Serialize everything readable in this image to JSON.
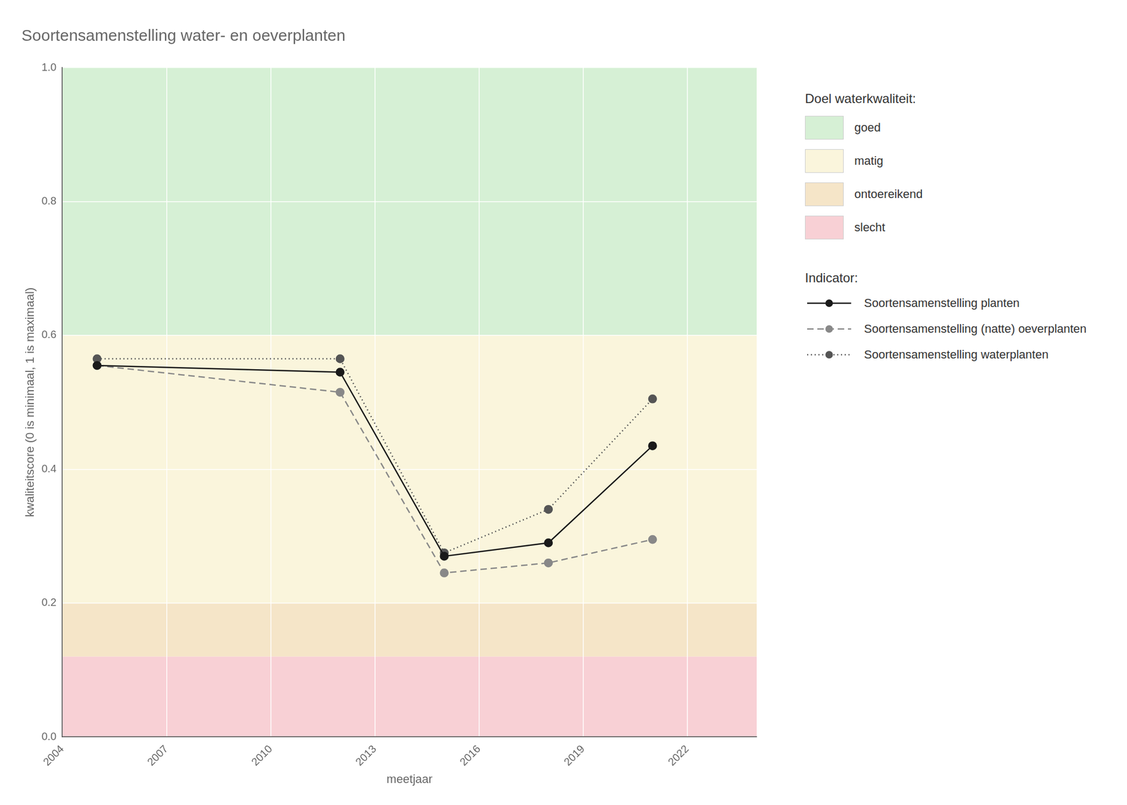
{
  "chart_data": {
    "type": "line",
    "title": "Soortensamenstelling water- en oeverplanten",
    "x_label": "meetjaar",
    "y_label": "kwaliteitscore (0 is minimaal, 1 is maximaal)",
    "x": [
      2005,
      2012,
      2015,
      2018,
      2021
    ],
    "series": [
      {
        "name": "Soortensamenstelling planten",
        "color": "#1a1a1a",
        "line_style": "solid",
        "marker": "circle",
        "values": [
          0.555,
          0.545,
          0.27,
          0.29,
          0.435
        ]
      },
      {
        "name": "Soortensamenstelling (natte) oeverplanten",
        "color": "#888888",
        "line_style": "dashed",
        "marker": "circle",
        "values": [
          0.555,
          0.515,
          0.245,
          0.26,
          0.295
        ]
      },
      {
        "name": "Soortensamenstelling waterplanten",
        "color": "#555555",
        "line_style": "dotted",
        "marker": "circle",
        "values": [
          0.565,
          0.565,
          0.275,
          0.34,
          0.505
        ]
      }
    ],
    "xlim": [
      2004,
      2024
    ],
    "xticks": [
      2004,
      2007,
      2010,
      2013,
      2016,
      2019,
      2022
    ],
    "ylim": [
      0.0,
      1.0
    ],
    "yticks": [
      {
        "value": 0.0,
        "label": "0.0"
      },
      0.2,
      0.4,
      0.6,
      0.8,
      {
        "value": 1.0,
        "label": "1.0"
      }
    ],
    "grid": true,
    "zones_title": "Doel waterkwaliteit:",
    "zones": [
      {
        "name": "goed",
        "from": 0.6,
        "to": 1.0,
        "color": "#d6f0d5"
      },
      {
        "name": "matig",
        "from": 0.2,
        "to": 0.6,
        "color": "#faf5dc"
      },
      {
        "name": "ontoereikend",
        "from": 0.12,
        "to": 0.2,
        "color": "#f5e5c8"
      },
      {
        "name": "slecht",
        "from": 0.0,
        "to": 0.12,
        "color": "#f8d0d5"
      }
    ],
    "series_title": "Indicator:"
  }
}
